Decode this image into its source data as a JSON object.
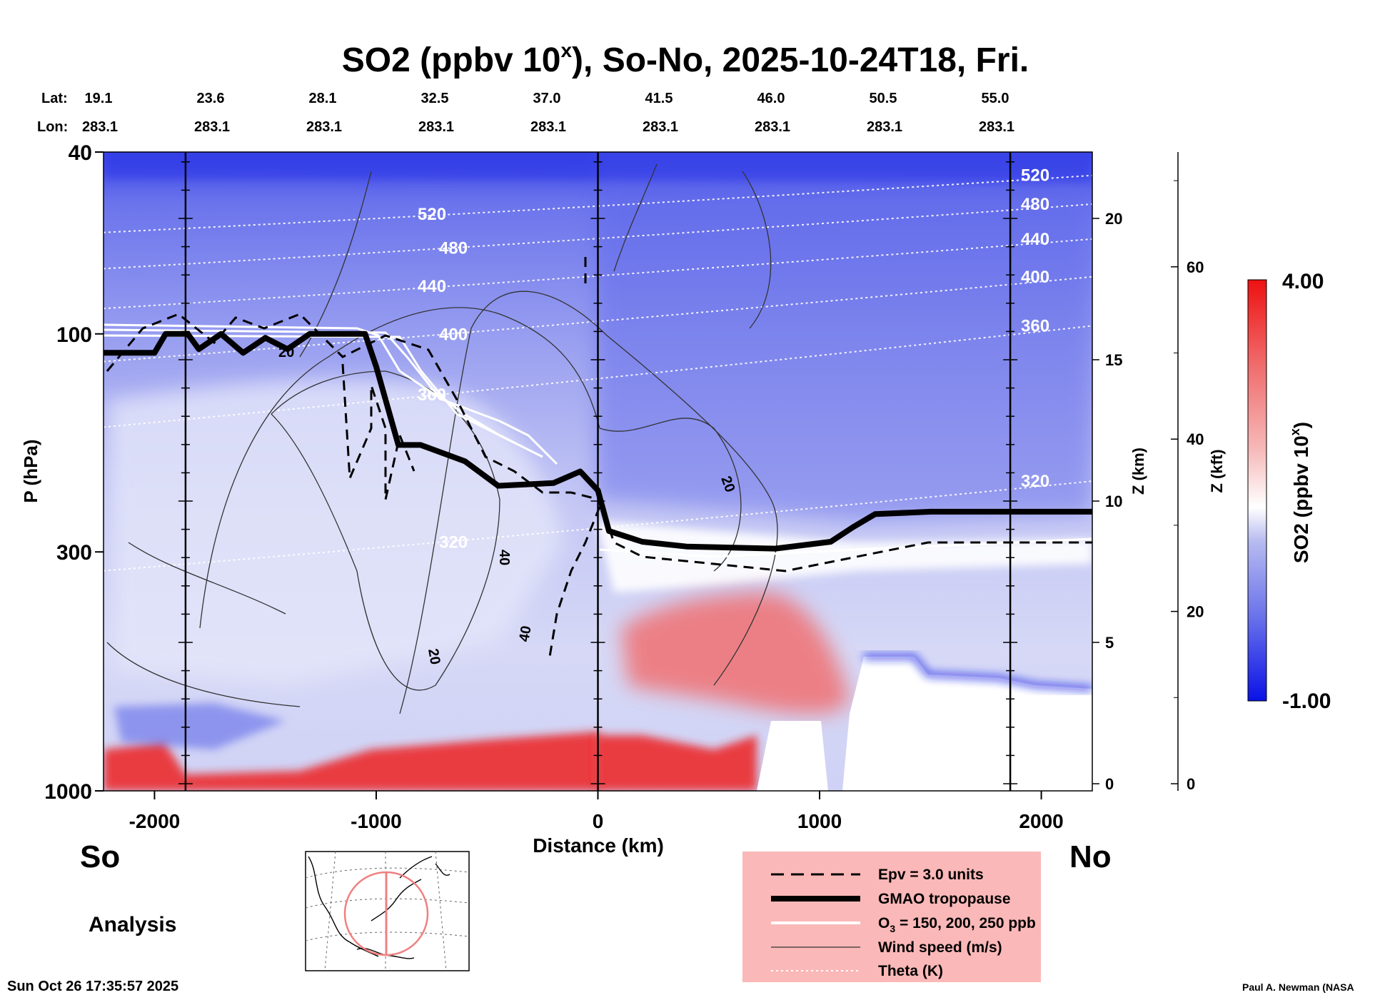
{
  "chart_data": {
    "type": "heatmap",
    "title_main": "SO2 (ppbv 10",
    "title_sup": "x",
    "title_tail": "), So-No, 2025-10-24T18, Fri.",
    "lat_label": "Lat:",
    "lon_label": "Lon:",
    "lat_ticks": [
      "19.1",
      "23.6",
      "28.1",
      "32.5",
      "37.0",
      "41.5",
      "46.0",
      "50.5",
      "55.0"
    ],
    "lon_ticks": [
      "283.1",
      "283.1",
      "283.1",
      "283.1",
      "283.1",
      "283.1",
      "283.1",
      "283.1",
      "283.1"
    ],
    "xlabel": "Distance (km)",
    "x_ticks": [
      {
        "v": -2000,
        "label": "-2000"
      },
      {
        "v": -1000,
        "label": "-1000"
      },
      {
        "v": 0,
        "label": "0"
      },
      {
        "v": 1000,
        "label": "1000"
      },
      {
        "v": 2000,
        "label": "2000"
      }
    ],
    "xlim": [
      -2230,
      2230
    ],
    "ylabel": "P (hPa)",
    "y_ticks": [
      {
        "v": 40,
        "label": "40"
      },
      {
        "v": 100,
        "label": "100"
      },
      {
        "v": 300,
        "label": "300"
      },
      {
        "v": 1000,
        "label": "1000"
      }
    ],
    "ylim": [
      40,
      1000
    ],
    "yscale": "log",
    "z_km_label": "Z (km)",
    "z_km_ticks": [
      {
        "v": 0,
        "label": "0"
      },
      {
        "v": 5,
        "label": "5"
      },
      {
        "v": 10,
        "label": "10"
      },
      {
        "v": 15,
        "label": "15"
      },
      {
        "v": 20,
        "label": "20"
      }
    ],
    "z_kft_label": "Z (kft)",
    "z_kft_ticks": [
      {
        "v": 0,
        "label": "0"
      },
      {
        "v": 20,
        "label": "20"
      },
      {
        "v": 40,
        "label": "40"
      },
      {
        "v": 60,
        "label": "60"
      }
    ],
    "colorbar": {
      "label_main": "SO2 (ppbv 10",
      "label_sup": "x",
      "label_tail": ")",
      "max": "4.00",
      "min": "-1.00",
      "vmax": 4.0,
      "vmin": -1.0,
      "colors": [
        "#0a12e6",
        "#6a72ea",
        "#b7bcf0",
        "#ffffff",
        "#f6b8b8",
        "#f06b6b",
        "#ee1111"
      ]
    },
    "vertical_lines_km": [
      -1860,
      0,
      1860
    ],
    "theta_contours": [
      {
        "label": "520",
        "p_left": 60,
        "p_right": 45
      },
      {
        "label": "480",
        "p_left": 72,
        "p_right": 52
      },
      {
        "label": "440",
        "p_left": 88,
        "p_right": 62
      },
      {
        "label": "400",
        "p_left": 115,
        "p_right": 75
      },
      {
        "label": "360",
        "p_left": 160,
        "p_right": 96
      },
      {
        "label": "320",
        "p_left": 330,
        "p_right": 210
      }
    ],
    "windspeed_labels": [
      "20",
      "40",
      "40",
      "20",
      "20"
    ],
    "tropopause_gmao": [
      [
        -2230,
        110
      ],
      [
        -2000,
        110
      ],
      [
        -1950,
        100
      ],
      [
        -1850,
        100
      ],
      [
        -1800,
        108
      ],
      [
        -1700,
        100
      ],
      [
        -1600,
        110
      ],
      [
        -1500,
        102
      ],
      [
        -1400,
        108
      ],
      [
        -1300,
        100
      ],
      [
        -1050,
        100
      ],
      [
        -1000,
        118
      ],
      [
        -900,
        175
      ],
      [
        -800,
        175
      ],
      [
        -600,
        190
      ],
      [
        -450,
        215
      ],
      [
        -200,
        212
      ],
      [
        -80,
        200
      ],
      [
        0,
        220
      ],
      [
        50,
        270
      ],
      [
        200,
        285
      ],
      [
        400,
        292
      ],
      [
        800,
        295
      ],
      [
        1050,
        285
      ],
      [
        1150,
        265
      ],
      [
        1250,
        248
      ],
      [
        1500,
        245
      ],
      [
        2230,
        245
      ]
    ],
    "annotations": {
      "left_label": "So",
      "right_label": "No",
      "analysis_label": "Analysis",
      "timestamp": "Sun Oct 26 17:35:57 2025",
      "credit": "Paul A. Newman (NASA"
    },
    "legend": {
      "placement": "bottom-right",
      "background": "#fbb8b8",
      "items": [
        {
          "label": "Epv = 3.0 units",
          "style": "dashed"
        },
        {
          "label": "GMAO tropopause",
          "style": "thick"
        },
        {
          "label_main": "O",
          "label_sub": "3",
          "label_tail": " = 150, 200, 250 ppb",
          "style": "white"
        },
        {
          "label": "Wind speed (m/s)",
          "style": "thin"
        },
        {
          "label": "Theta (K)",
          "style": "dotted"
        }
      ]
    }
  }
}
